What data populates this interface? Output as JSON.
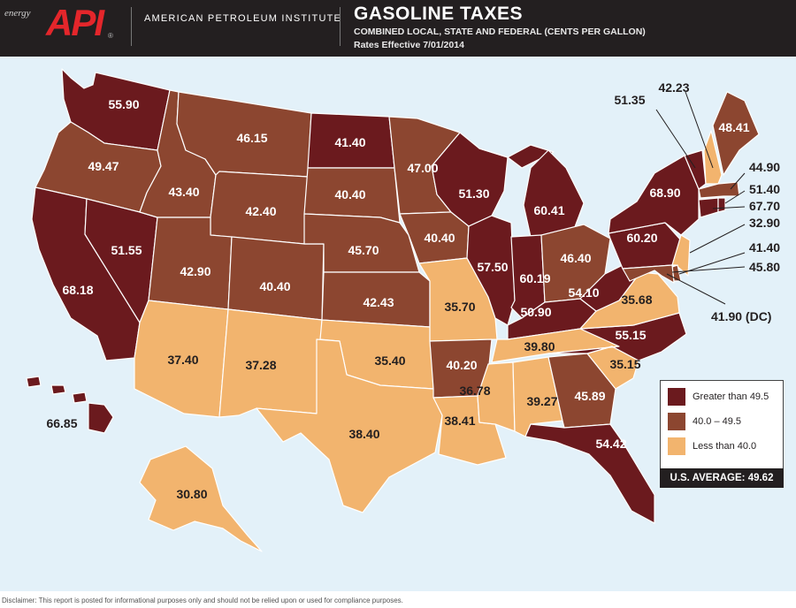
{
  "header": {
    "energy": "energy",
    "api": "API",
    "reg": "®",
    "org": "AMERICAN PETROLEUM INSTITUTE",
    "title": "GASOLINE TAXES",
    "subtitle1": "COMBINED LOCAL, STATE AND FEDERAL (CENTS PER GALLON)",
    "subtitle2": "Rates Effective 7/01/2014"
  },
  "colors": {
    "high": "#6b1a1e",
    "mid": "#8c4630",
    "low": "#f2b46e",
    "ocean": "#e3f1f9",
    "border": "#ffffff"
  },
  "legend": {
    "high": "Greater than 49.5",
    "mid": "40.0 – 49.5",
    "low": "Less than 40.0"
  },
  "us_average": "U.S. AVERAGE: 49.62",
  "states": {
    "WA": "55.90",
    "OR": "49.47",
    "CA": "68.18",
    "NV": "51.55",
    "ID": "43.40",
    "MT": "46.15",
    "WY": "42.40",
    "UT": "42.90",
    "CO": "40.40",
    "AZ": "37.40",
    "NM": "37.28",
    "ND": "41.40",
    "SD": "40.40",
    "NE": "45.70",
    "KS": "42.43",
    "OK": "35.40",
    "TX": "38.40",
    "MN": "47.00",
    "IA": "40.40",
    "MO": "35.70",
    "AR": "40.20",
    "LA": "38.41",
    "WI": "51.30",
    "IL": "57.50",
    "MI": "60.41",
    "IN": "60.19",
    "OH": "46.40",
    "KY": "50.90",
    "TN": "39.80",
    "MS": "36.78",
    "AL": "39.27",
    "GA": "45.89",
    "FL": "54.42",
    "SC": "35.15",
    "NC": "55.15",
    "VA": "35.68",
    "WV": "54.10",
    "PA": "60.20",
    "NY": "68.90",
    "VT": "51.35",
    "NH": "42.23",
    "ME": "48.41",
    "MA": "44.90",
    "RI": "51.40",
    "CT": "67.70",
    "NJ": "32.90",
    "DE": "41.40",
    "MD": "45.80",
    "DC": "41.90 (DC)",
    "AK": "30.80",
    "HI": "66.85"
  },
  "disclaimer": "Disclaimer: This report is posted for informational purposes only and should not be relied upon or used for compliance purposes."
}
